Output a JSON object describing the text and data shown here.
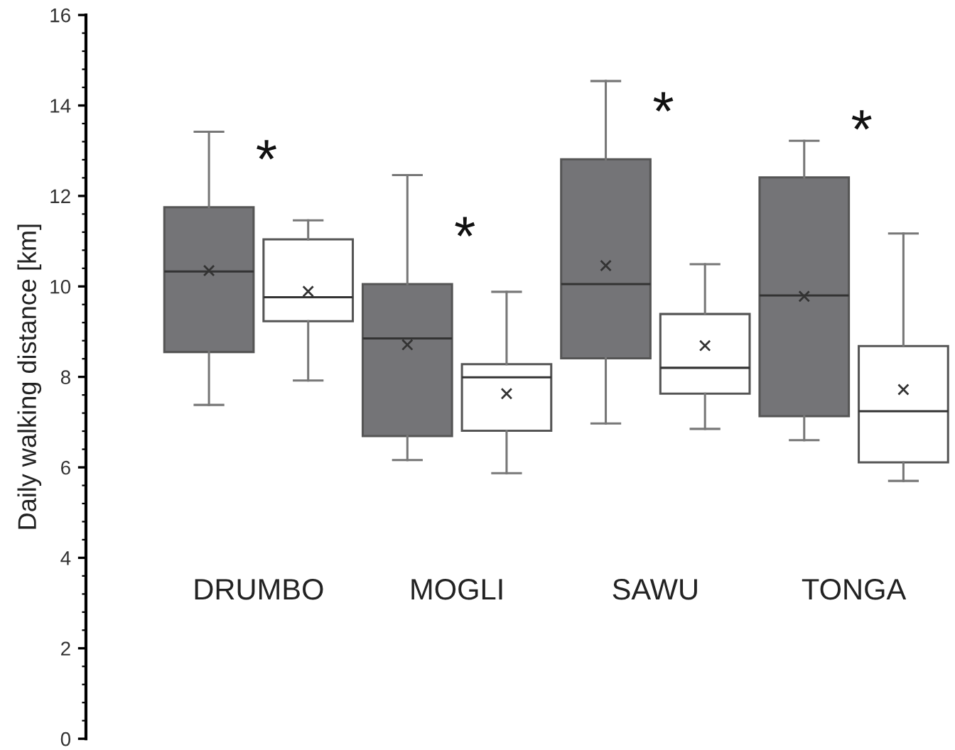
{
  "chart_data": {
    "type": "box",
    "ylabel": "Daily walking distance [km]",
    "categories": [
      "DRUMBO",
      "MOGLI",
      "SAWU",
      "TONGA"
    ],
    "ylim": [
      0,
      16
    ],
    "yticks": [
      0,
      2,
      4,
      6,
      8,
      10,
      12,
      14,
      16
    ],
    "grid": false,
    "series": [
      {
        "color": "#747477",
        "boxes": [
          {
            "low": 7.38,
            "q1": 8.55,
            "median": 10.33,
            "q3": 11.75,
            "high": 13.42,
            "mean": 10.35
          },
          {
            "low": 6.16,
            "q1": 6.69,
            "median": 8.85,
            "q3": 10.05,
            "high": 12.46,
            "mean": 8.71
          },
          {
            "low": 6.97,
            "q1": 8.41,
            "median": 10.05,
            "q3": 12.81,
            "high": 14.54,
            "mean": 10.46
          },
          {
            "low": 6.6,
            "q1": 7.13,
            "median": 9.8,
            "q3": 12.41,
            "high": 13.22,
            "mean": 9.78
          }
        ]
      },
      {
        "color": "#ffffff",
        "boxes": [
          {
            "low": 7.92,
            "q1": 9.23,
            "median": 9.76,
            "q3": 11.04,
            "high": 11.46,
            "mean": 9.89
          },
          {
            "low": 5.87,
            "q1": 6.81,
            "median": 7.99,
            "q3": 8.28,
            "high": 9.88,
            "mean": 7.63
          },
          {
            "low": 6.85,
            "q1": 7.63,
            "median": 8.2,
            "q3": 9.39,
            "high": 10.49,
            "mean": 8.69
          },
          {
            "low": 5.7,
            "q1": 6.11,
            "median": 7.24,
            "q3": 8.68,
            "high": 11.17,
            "mean": 7.72
          }
        ]
      }
    ],
    "annotations": [
      "*",
      "*",
      "*",
      "*"
    ]
  }
}
